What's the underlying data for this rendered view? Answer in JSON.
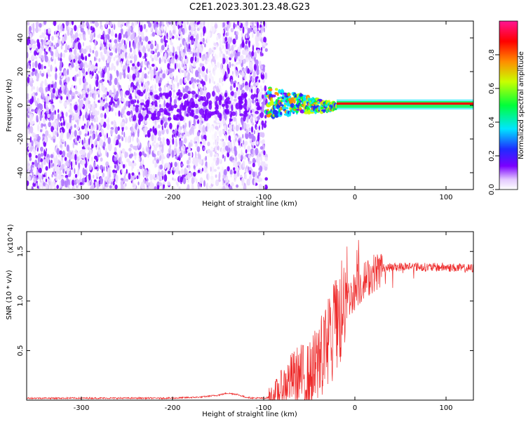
{
  "title": "C2E1.2023.301.23.48.G23",
  "colors": {
    "snr_line": "#ee2a2a",
    "spectrogram_hot": "#7a00ff",
    "axis": "#000000"
  },
  "chart_data": [
    {
      "type": "heatmap",
      "name": "spectrogram",
      "xlabel": "Height of straight line (km)",
      "ylabel": "Frequency (Hz)",
      "xlim": [
        -360,
        130
      ],
      "ylim": [
        -50,
        50
      ],
      "xticks": [
        -300,
        -200,
        -100,
        0,
        100
      ],
      "yticks": [
        -40,
        -20,
        0,
        20,
        40
      ],
      "colorbar": {
        "label": "Normalized spectral amplitude",
        "range": [
          0.0,
          1.0
        ],
        "ticks": [
          0.0,
          0.2,
          0.4,
          0.6,
          0.8
        ],
        "tick_labels": [
          "0.0",
          "0.2",
          "0.4",
          "0.6",
          "0.8"
        ],
        "colormap": [
          "#ffffff",
          "#e9d3ff",
          "#7a00ff",
          "#1e2cff",
          "#00e5ff",
          "#00ff3a",
          "#c8ff00",
          "#ff8c00",
          "#ff0000",
          "#ff1493"
        ]
      },
      "regions": [
        {
          "desc": "noise",
          "x_range": [
            -360,
            -97
          ],
          "freq_range": [
            -50,
            50
          ],
          "amplitude": 0.15
        },
        {
          "desc": "gap",
          "x_range": [
            -162,
            -145
          ],
          "freq_range": [
            -50,
            50
          ],
          "amplitude": 0.04
        },
        {
          "desc": "carrier-turbulent",
          "x_range": [
            -97,
            -20
          ],
          "freq_range": [
            -8,
            12
          ],
          "amplitude": 0.5
        },
        {
          "desc": "carrier-stable",
          "x_range": [
            -20,
            130
          ],
          "freq_range": [
            -1,
            3
          ],
          "amplitude": 0.9
        }
      ]
    },
    {
      "type": "line",
      "name": "snr",
      "xlabel": "Height of straight line (km)",
      "ylabel": "SNR (10 * v/v)",
      "y_multiplier": "(x10^4)",
      "xlim": [
        -360,
        130
      ],
      "ylim": [
        0,
        1.7
      ],
      "xticks": [
        -300,
        -200,
        -100,
        0,
        100
      ],
      "yticks": [
        0.5,
        1.0,
        1.5
      ],
      "ytick_labels": [
        "0.5",
        "1.0",
        "1.5"
      ],
      "series": [
        {
          "name": "SNR",
          "x": [
            -360,
            -330,
            -300,
            -250,
            -200,
            -170,
            -150,
            -140,
            -130,
            -120,
            -110,
            -100,
            -90,
            -80,
            -70,
            -60,
            -50,
            -40,
            -30,
            -20,
            -15,
            -10,
            -5,
            0,
            10,
            20,
            30,
            40,
            60,
            80,
            100,
            120,
            130
          ],
          "y": [
            0.02,
            0.02,
            0.02,
            0.02,
            0.02,
            0.03,
            0.05,
            0.07,
            0.06,
            0.03,
            0.02,
            0.02,
            0.03,
            0.12,
            0.22,
            0.25,
            0.2,
            0.35,
            0.55,
            0.7,
            0.9,
            1.0,
            1.05,
            1.1,
            1.2,
            1.28,
            1.33,
            1.34,
            1.35,
            1.34,
            1.34,
            1.33,
            1.33
          ]
        }
      ]
    }
  ]
}
